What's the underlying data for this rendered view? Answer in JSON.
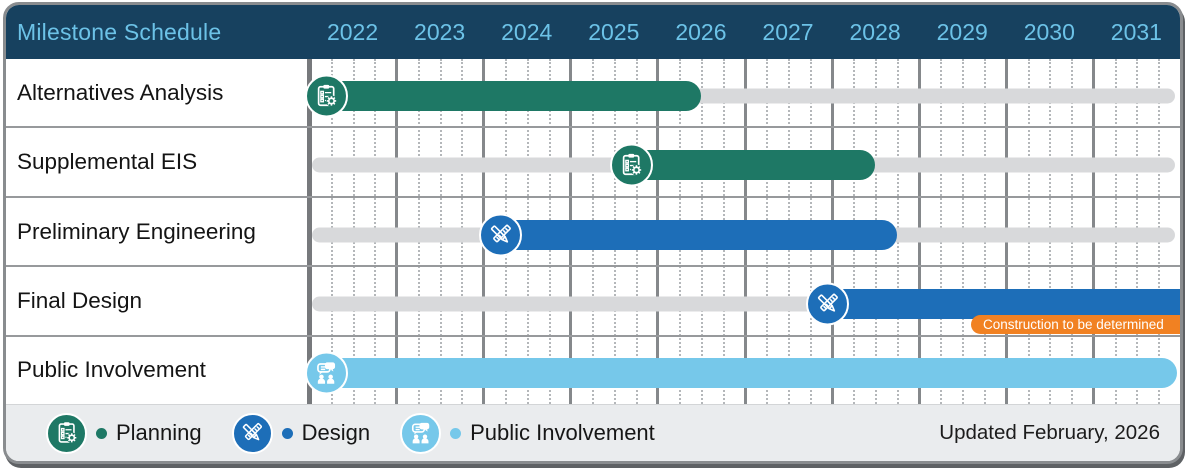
{
  "header": {
    "title": "Milestone Schedule"
  },
  "chart_data": {
    "type": "gantt",
    "title": "Milestone Schedule",
    "x_axis": {
      "unit": "year",
      "min": 2022,
      "max": 2032,
      "tick_labels": [
        "2022",
        "2023",
        "2024",
        "2025",
        "2026",
        "2027",
        "2028",
        "2029",
        "2030",
        "2031"
      ],
      "minor_gridlines": "quarterly-dotted",
      "major_gridlines": "yearly-solid"
    },
    "rows": [
      {
        "label": "Alternatives Analysis",
        "category": "planning",
        "icon": "clipboard-gear-icon",
        "start": 2022.0,
        "end": 2026.5
      },
      {
        "label": "Supplemental EIS",
        "category": "planning",
        "icon": "clipboard-gear-icon",
        "start": 2025.5,
        "end": 2028.5
      },
      {
        "label": "Preliminary Engineering",
        "category": "design",
        "icon": "pencil-ruler-icon",
        "start": 2024.0,
        "end": 2028.75
      },
      {
        "label": "Final Design",
        "category": "design",
        "icon": "pencil-ruler-icon",
        "start": 2027.75,
        "end": 2032,
        "end_clipped": true,
        "annotation": {
          "text": "Construction to be determined",
          "start": 2029.6
        }
      },
      {
        "label": "Public Involvement",
        "category": "public-involvement",
        "icon": "people-chat-icon",
        "start": 2022.0,
        "end": 2031.97
      }
    ]
  },
  "legend": {
    "items": [
      {
        "label": "Planning",
        "category": "planning",
        "icon": "clipboard-gear-icon"
      },
      {
        "label": "Design",
        "category": "design",
        "icon": "pencil-ruler-icon"
      },
      {
        "label": "Public Involvement",
        "category": "public-involvement",
        "icon": "people-chat-icon"
      }
    ]
  },
  "footer": {
    "updated": "Updated February, 2026"
  },
  "colors": {
    "planning": "#1e7865",
    "design": "#1d6eb8",
    "public_involvement": "#76c8ea",
    "header_bg": "#17415f",
    "header_text": "#6cc2e7",
    "track": "#d8d9db",
    "grid_solid": "#85888b",
    "grid_dotted": "#b4b7ba",
    "row_divider": "#97999c",
    "annotation_bg": "#f18122",
    "annotation_text": "#ffffff",
    "footer_bg": "#eaecee",
    "label_text": "#141414",
    "card_border": "#898c8f"
  }
}
